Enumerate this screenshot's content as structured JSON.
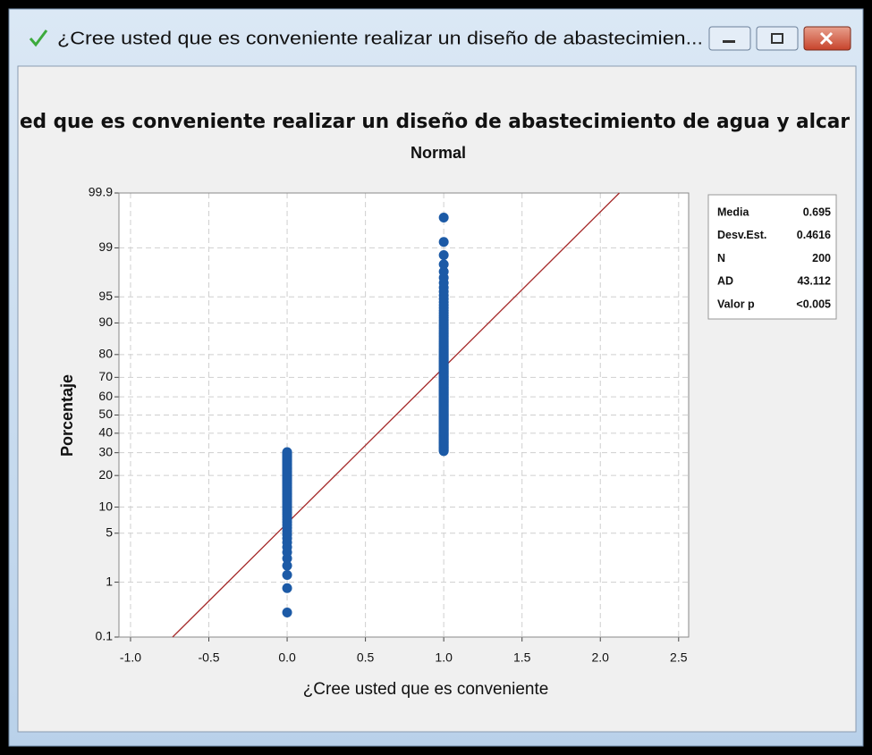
{
  "window": {
    "title": "¿Cree usted que es conveniente realizar un diseño de abastecimien..."
  },
  "chart_data": {
    "type": "scatter",
    "title": "ed que es conveniente realizar un diseño de abastecimiento de agua y alcar",
    "subtitle": "Normal",
    "x_label": "¿Cree usted que es conveniente",
    "y_label": "Porcentaje",
    "yscale": "probability",
    "grid": true,
    "xlim": [
      -1.074,
      2.564
    ],
    "ylim": [
      0.1,
      99.9
    ],
    "xticks": [
      {
        "value": -1,
        "label": "-1.0"
      },
      -0.5,
      {
        "value": 0,
        "label": "0.0"
      },
      0.5,
      {
        "value": 1,
        "label": "1.0"
      },
      1.5,
      {
        "value": 2,
        "label": "2.0"
      },
      2.5
    ],
    "yticks": [
      0.1,
      1,
      5,
      10,
      20,
      30,
      40,
      50,
      60,
      70,
      80,
      90,
      95,
      99,
      99.9
    ],
    "fit_color": "#a52a2a",
    "series": [
      {
        "color": "#1c5aa6",
        "x": [
          0,
          0,
          0,
          0,
          0,
          0,
          0,
          0,
          0,
          0,
          0,
          0,
          0,
          0,
          0,
          0,
          0,
          0,
          0,
          0,
          0,
          0,
          0,
          0,
          0,
          0,
          0,
          0,
          0,
          0,
          0,
          0,
          0,
          0,
          0,
          0,
          0,
          0,
          0,
          0,
          0,
          0,
          0,
          0,
          0,
          0,
          0,
          0,
          0,
          0,
          0,
          0,
          0,
          0,
          0,
          0,
          0,
          0,
          0,
          0,
          0
        ],
        "values": [
          0.3,
          0.8,
          1.3,
          1.8,
          2.3,
          2.8,
          3.3,
          3.8,
          4.3,
          4.8,
          5.3,
          5.8,
          6.3,
          6.8,
          7.3,
          7.8,
          8.3,
          8.8,
          9.3,
          9.8,
          10.3,
          10.8,
          11.3,
          11.8,
          12.3,
          12.8,
          13.3,
          13.8,
          14.3,
          14.8,
          15.3,
          15.8,
          16.3,
          16.8,
          17.3,
          17.8,
          18.3,
          18.8,
          19.3,
          19.8,
          20.3,
          20.8,
          21.3,
          21.8,
          22.3,
          22.8,
          23.3,
          23.8,
          24.3,
          24.8,
          25.3,
          25.8,
          26.3,
          26.8,
          27.3,
          27.8,
          28.3,
          28.8,
          29.3,
          29.8,
          30.3
        ]
      },
      {
        "color": "#1c5aa6",
        "x": [
          1,
          1,
          1,
          1,
          1,
          1,
          1,
          1,
          1,
          1,
          1,
          1,
          1,
          1,
          1,
          1,
          1,
          1,
          1,
          1,
          1,
          1,
          1,
          1,
          1,
          1,
          1,
          1,
          1,
          1,
          1,
          1,
          1,
          1,
          1,
          1,
          1,
          1,
          1,
          1,
          1,
          1,
          1,
          1,
          1,
          1,
          1,
          1,
          1,
          1,
          1,
          1,
          1,
          1,
          1,
          1,
          1,
          1,
          1,
          1,
          1,
          1,
          1,
          1,
          1,
          1,
          1,
          1,
          1,
          1,
          1,
          1,
          1,
          1,
          1,
          1,
          1,
          1,
          1,
          1,
          1,
          1,
          1,
          1,
          1,
          1,
          1,
          1,
          1,
          1,
          1,
          1,
          1,
          1,
          1,
          1,
          1,
          1,
          1,
          1,
          1,
          1,
          1,
          1,
          1,
          1,
          1,
          1,
          1,
          1,
          1,
          1,
          1,
          1,
          1,
          1,
          1,
          1,
          1,
          1,
          1,
          1,
          1,
          1,
          1,
          1,
          1,
          1,
          1,
          1,
          1,
          1,
          1,
          1,
          1,
          1,
          1,
          1,
          1
        ],
        "values": [
          30.8,
          31.3,
          31.8,
          32.3,
          32.8,
          33.3,
          33.8,
          34.3,
          34.8,
          35.3,
          35.8,
          36.3,
          36.8,
          37.3,
          37.8,
          38.3,
          38.8,
          39.3,
          39.8,
          40.3,
          40.8,
          41.3,
          41.8,
          42.3,
          42.8,
          43.3,
          43.8,
          44.3,
          44.8,
          45.3,
          45.8,
          46.3,
          46.8,
          47.3,
          47.8,
          48.3,
          48.8,
          49.3,
          49.8,
          50.2,
          50.7,
          51.2,
          51.7,
          52.2,
          52.7,
          53.2,
          53.7,
          54.2,
          54.7,
          55.2,
          55.7,
          56.2,
          56.7,
          57.2,
          57.7,
          58.2,
          58.7,
          59.2,
          59.7,
          60.2,
          60.7,
          61.2,
          61.7,
          62.2,
          62.7,
          63.2,
          63.7,
          64.2,
          64.7,
          65.2,
          65.7,
          66.2,
          66.7,
          67.2,
          67.7,
          68.2,
          68.7,
          69.2,
          69.7,
          70.2,
          70.7,
          71.2,
          71.7,
          72.2,
          72.7,
          73.2,
          73.7,
          74.2,
          74.7,
          75.2,
          75.7,
          76.2,
          76.7,
          77.2,
          77.7,
          78.2,
          78.7,
          79.2,
          79.7,
          80.2,
          80.7,
          81.2,
          81.7,
          82.2,
          82.7,
          83.2,
          83.7,
          84.2,
          84.7,
          85.2,
          85.7,
          86.2,
          86.7,
          87.2,
          87.7,
          88.2,
          88.7,
          89.2,
          89.7,
          90.2,
          90.7,
          91.2,
          91.7,
          92.2,
          92.7,
          93.2,
          93.7,
          94.2,
          94.7,
          95.2,
          95.7,
          96.2,
          96.7,
          97.2,
          97.7,
          98.2,
          98.7,
          99.2,
          99.7
        ]
      }
    ],
    "stats": [
      {
        "label": "Media",
        "value": 0.695
      },
      {
        "label": "Desv.Est.",
        "value": 0.4616
      },
      {
        "label": "N",
        "value": 200
      },
      {
        "label": "AD",
        "value": 43.112
      },
      {
        "label": "Valor p",
        "value": "<0.005"
      }
    ]
  }
}
